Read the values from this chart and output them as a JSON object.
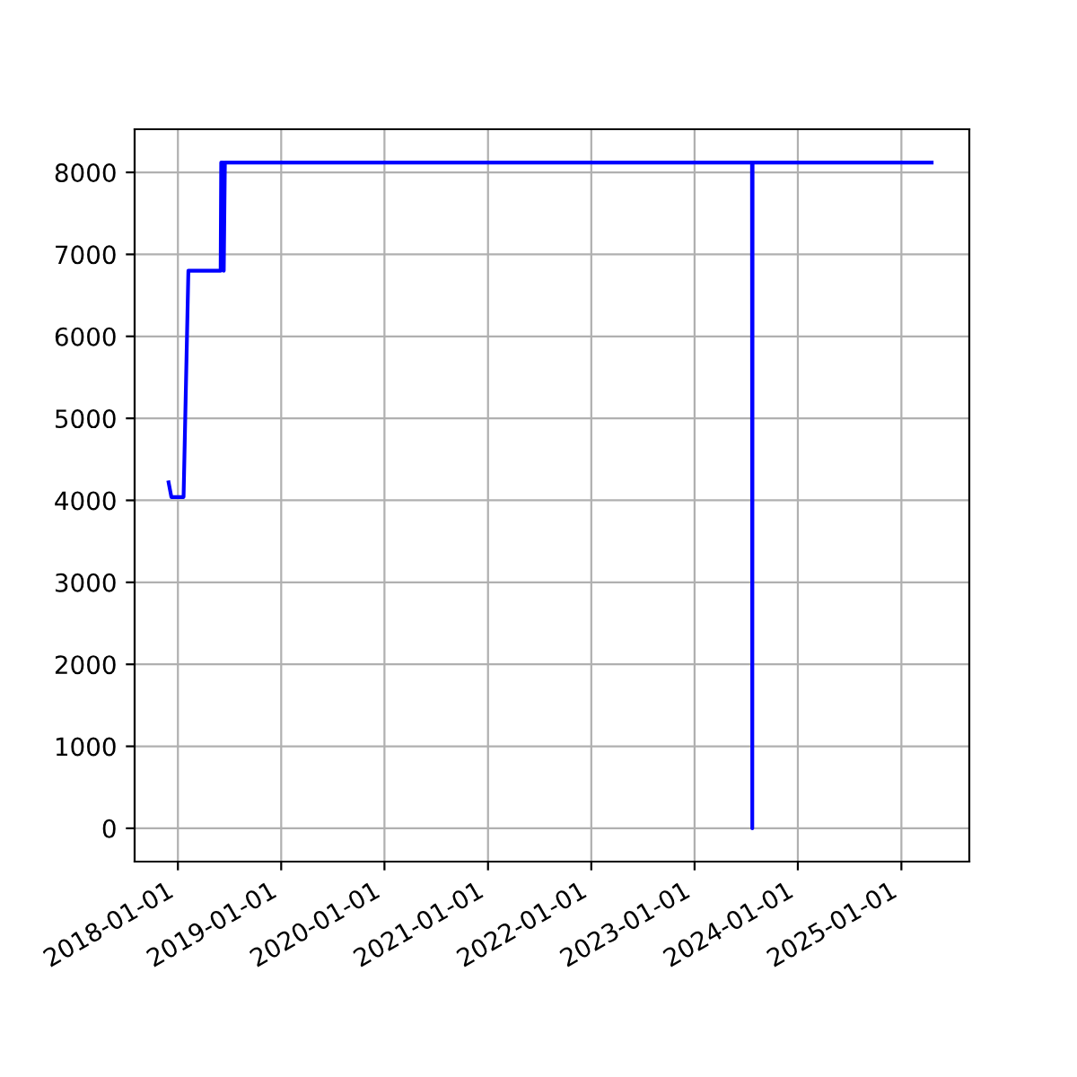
{
  "chart_data": {
    "type": "line",
    "x": [
      "2017-11-29",
      "2017-12-09",
      "2018-01-21",
      "2018-02-07",
      "2018-06-01",
      "2018-06-03",
      "2018-06-10",
      "2018-06-12",
      "2018-06-16",
      "2023-07-23",
      "2023-07-24",
      "2023-07-25",
      "2025-04-18"
    ],
    "series": [
      {
        "color": "#0000ff",
        "values": [
          4220,
          4040,
          4040,
          6800,
          6800,
          8120,
          8120,
          6800,
          8120,
          8120,
          0,
          8120,
          8120
        ]
      }
    ],
    "xlim": [
      "2017-08-01",
      "2025-08-29"
    ],
    "xticks": [
      {
        "value": "2018-01-01",
        "label": "2018-01-01"
      },
      {
        "value": "2019-01-01",
        "label": "2019-01-01"
      },
      {
        "value": "2020-01-01",
        "label": "2020-01-01"
      },
      {
        "value": "2021-01-01",
        "label": "2021-01-01"
      },
      {
        "value": "2022-01-01",
        "label": "2022-01-01"
      },
      {
        "value": "2023-01-01",
        "label": "2023-01-01"
      },
      {
        "value": "2024-01-01",
        "label": "2024-01-01"
      },
      {
        "value": "2025-01-01",
        "label": "2025-01-01"
      }
    ],
    "ylim": [
      -406,
      8526
    ],
    "yticks": [
      0,
      1000,
      2000,
      3000,
      4000,
      5000,
      6000,
      7000,
      8000
    ],
    "grid": true,
    "legend": false
  }
}
